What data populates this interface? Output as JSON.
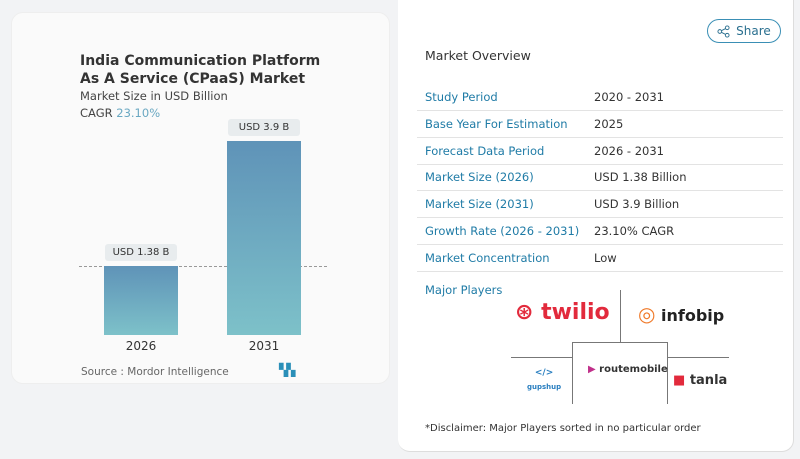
{
  "chart": {
    "title": "India Communication Platform As A Service (CPaaS) Market",
    "subtitle": "Market Size in USD Billion",
    "cagr_label": "CAGR",
    "cagr_value": "23.10%",
    "source": "Source :  Mordor Intelligence"
  },
  "chart_data": {
    "type": "bar",
    "categories": [
      "2026",
      "2031"
    ],
    "values": [
      1.38,
      3.9
    ],
    "data_labels": [
      "USD 1.38 B",
      "USD 3.9 B"
    ],
    "title": "India Communication Platform As A Service (CPaaS) Market",
    "ylabel": "Market Size in USD Billion",
    "colors": [
      "#5f93b8",
      "#7dc1c9"
    ]
  },
  "share": {
    "label": "Share",
    "icon": "share-icon"
  },
  "overview": {
    "title": "Market Overview",
    "rows": [
      {
        "k": "Study Period",
        "v": "2020 - 2031"
      },
      {
        "k": "Base Year For Estimation",
        "v": "2025"
      },
      {
        "k": "Forecast Data Period",
        "v": "2026 - 2031"
      },
      {
        "k": "Market Size (2026)",
        "v": "USD 1.38 Billion"
      },
      {
        "k": "Market Size (2031)",
        "v": "USD 3.9 Billion"
      },
      {
        "k": "Growth Rate (2026 - 2031)",
        "v": "23.10% CAGR"
      },
      {
        "k": "Market Concentration",
        "v": "Low"
      }
    ]
  },
  "players": {
    "title": "Major Players",
    "logos": [
      "twilio",
      "infobip",
      "gupshup",
      "routemobile",
      "tanla"
    ],
    "disclaimer": "*Disclaimer: Major Players sorted in no particular order"
  }
}
